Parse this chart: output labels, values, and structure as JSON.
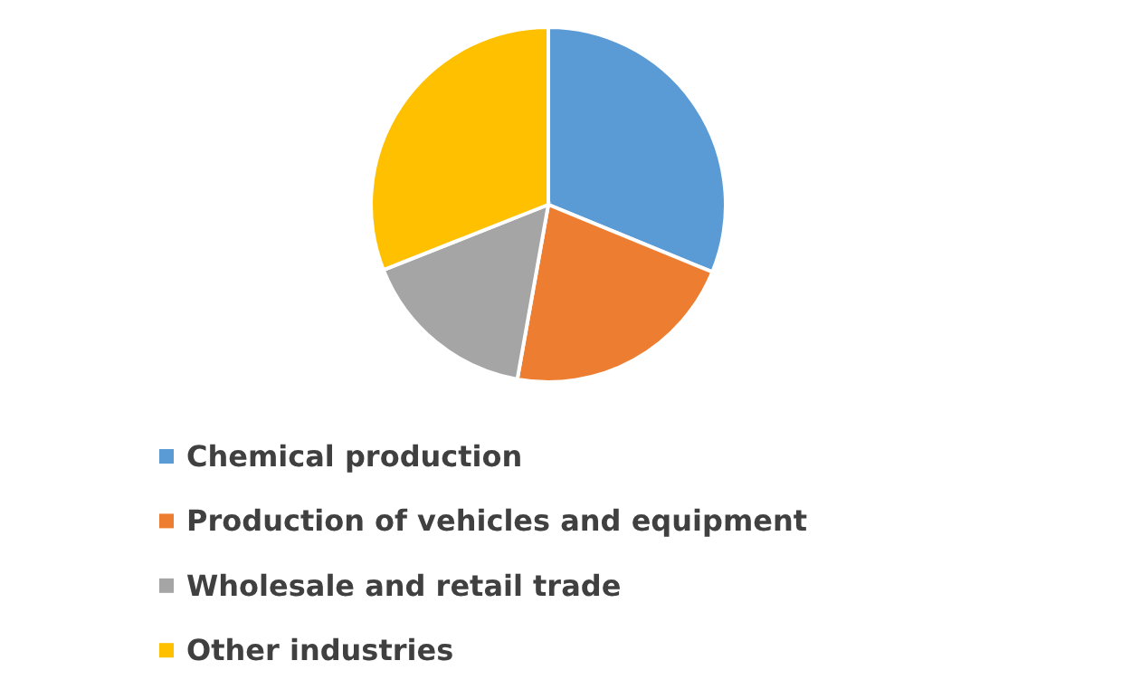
{
  "chart_data": {
    "type": "pie",
    "categories": [
      "Chemical production",
      "Production of vehicles and equipment",
      "Wholesale and retail trade",
      "Other industries"
    ],
    "values": [
      31.2,
      21.6,
      16.2,
      31.0
    ],
    "colors": [
      "#5b9bd5",
      "#ed7d31",
      "#a5a5a5",
      "#ffc000"
    ],
    "legend": "bottom"
  }
}
